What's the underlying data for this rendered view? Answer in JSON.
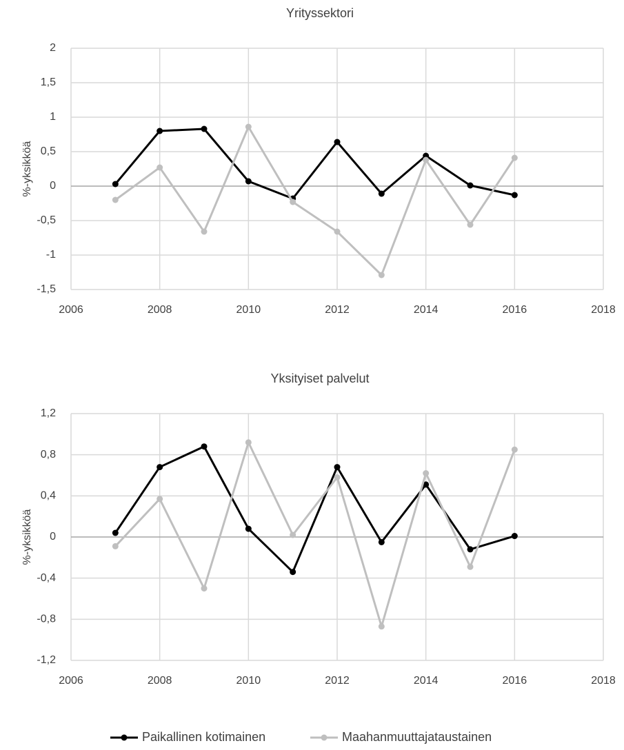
{
  "chart_data": [
    {
      "type": "line",
      "title": "Yrityssektori",
      "y_label": "%-yksikköä",
      "x": [
        2007,
        2008,
        2009,
        2010,
        2011,
        2012,
        2013,
        2014,
        2015,
        2016
      ],
      "xlim": [
        2006,
        2018
      ],
      "xticks": [
        2006,
        2008,
        2010,
        2012,
        2014,
        2016,
        2018
      ],
      "ylim": [
        -1.5,
        2
      ],
      "yticks": [
        {
          "value": -1.5,
          "label": "-1,5"
        },
        -1,
        {
          "value": -0.5,
          "label": "-0,5"
        },
        0,
        {
          "value": 0.5,
          "label": "0,5"
        },
        1,
        {
          "value": 1.5,
          "label": "1,5"
        },
        2
      ],
      "grid": true,
      "series": [
        {
          "name": "Paikallinen kotimainen",
          "color": "#000000",
          "values": [
            0.03,
            0.8,
            0.83,
            0.07,
            -0.18,
            0.64,
            -0.11,
            0.44,
            0.01,
            -0.13
          ]
        },
        {
          "name": "Maahanmuuttajataustainen",
          "color": "#bfbfbf",
          "values": [
            -0.2,
            0.27,
            -0.66,
            0.86,
            -0.23,
            -0.66,
            -1.29,
            0.38,
            -0.56,
            0.41
          ]
        }
      ]
    },
    {
      "type": "line",
      "title": "Yksityiset palvelut",
      "y_label": "%-yksikköä",
      "x": [
        2007,
        2008,
        2009,
        2010,
        2011,
        2012,
        2013,
        2014,
        2015,
        2016
      ],
      "xlim": [
        2006,
        2018
      ],
      "xticks": [
        2006,
        2008,
        2010,
        2012,
        2014,
        2016,
        2018
      ],
      "ylim": [
        -1.2,
        1.2
      ],
      "yticks": [
        {
          "value": -1.2,
          "label": "-1,2"
        },
        {
          "value": -0.8,
          "label": "-0,8"
        },
        {
          "value": -0.4,
          "label": "-0,4"
        },
        0,
        {
          "value": 0.4,
          "label": "0,4"
        },
        {
          "value": 0.8,
          "label": "0,8"
        },
        {
          "value": 1.2,
          "label": "1,2"
        }
      ],
      "grid": true,
      "series": [
        {
          "name": "Paikallinen kotimainen",
          "color": "#000000",
          "values": [
            0.04,
            0.68,
            0.88,
            0.08,
            -0.34,
            0.68,
            -0.05,
            0.51,
            -0.12,
            0.01
          ]
        },
        {
          "name": "Maahanmuuttajataustainen",
          "color": "#bfbfbf",
          "values": [
            -0.09,
            0.37,
            -0.5,
            0.92,
            0.02,
            0.58,
            -0.87,
            0.62,
            -0.29,
            0.85
          ]
        }
      ]
    }
  ],
  "legend": "bottom"
}
